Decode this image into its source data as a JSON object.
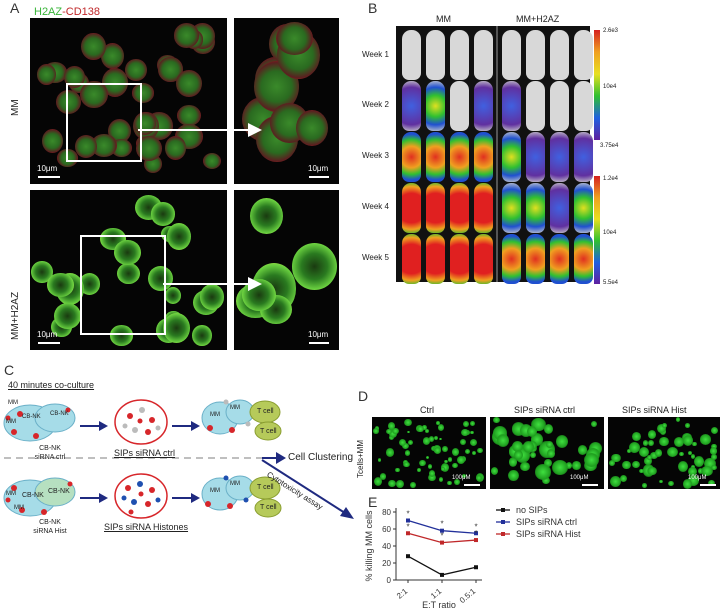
{
  "panel_A": {
    "letter": "A",
    "stain_green": "H2AZ",
    "stain_sep": "-",
    "stain_red": "CD138",
    "row_labels": [
      "MM",
      "MM+H2AZ"
    ],
    "scale_label": "10μm"
  },
  "panel_B": {
    "letter": "B",
    "col_labels": [
      "MM",
      "MM+H2AZ"
    ],
    "week_labels": [
      "Week 1",
      "Week 2",
      "Week 3",
      "Week 4",
      "Week 5"
    ],
    "colorbar_top": {
      "max": "2.6e3",
      "mid": "10e4",
      "min": "3.75e4"
    },
    "colorbar_bottom": {
      "max": "1.2e4",
      "mid": "10e4",
      "min": "5.5e4"
    }
  },
  "panel_C": {
    "letter": "C",
    "coculture_title": "40 minutes co-culture",
    "mm": "MM",
    "cbnk": "CB-NK",
    "tcell": "T cell",
    "ctrl_caption_1": "CB-NK",
    "ctrl_caption_2": "siRNA ctrl",
    "hist_caption_1": "CB-NK",
    "hist_caption_2": "siRNA Hist",
    "sips_ctrl": "SIPs siRNA ctrl",
    "sips_hist": "SIPs siRNA Histones",
    "cell_clustering": "Cell Clustering",
    "cytotoxicity": "Cytotoxicity assay"
  },
  "panel_D": {
    "letter": "D",
    "col_labels": [
      "Ctrl",
      "SIPs siRNA ctrl",
      "SIPs siRNA Hist"
    ],
    "row_label": "Tcells+MM",
    "scale_label": "100μM"
  },
  "panel_E": {
    "letter": "E",
    "colors": {
      "no_sips": "#111111",
      "ctrl": "#22309a",
      "hist": "#c0282a"
    },
    "chart_data": {
      "type": "line",
      "categories": [
        "2:1",
        "1:1",
        "0.5:1"
      ],
      "xlabel": "E:T ratio",
      "ylabel": "% killing MM cells",
      "ylim": [
        0,
        80
      ],
      "yticks": [
        "0",
        "20",
        "40",
        "60",
        "80"
      ],
      "series": [
        {
          "name": "no SIPs",
          "values": [
            28,
            6,
            15
          ]
        },
        {
          "name": "SIPs siRNA ctrl",
          "values": [
            70,
            58,
            55
          ]
        },
        {
          "name": "SIPs siRNA Hist",
          "values": [
            55,
            44,
            47
          ]
        }
      ],
      "significance": [
        "*",
        "*",
        "*"
      ],
      "legend": "top-right"
    }
  }
}
